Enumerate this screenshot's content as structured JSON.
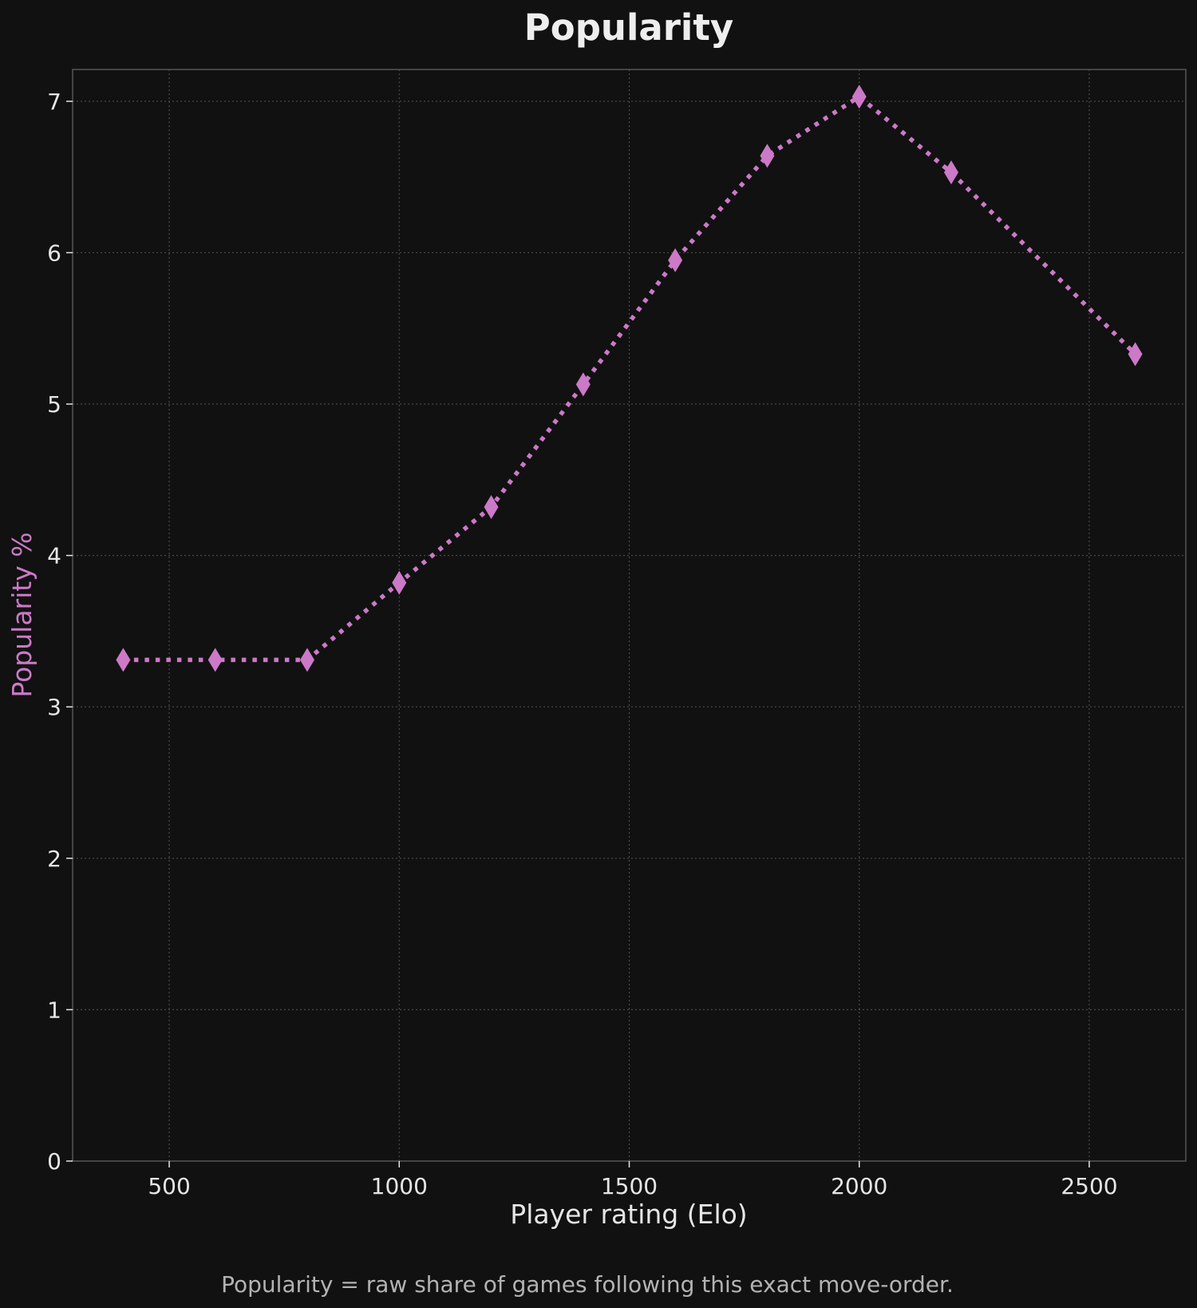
{
  "chart_data": {
    "type": "line",
    "title": "Popularity",
    "xlabel": "Player rating (Elo)",
    "ylabel": "Popularity %",
    "caption": "Popularity = raw share of games following this exact move-order.",
    "x": [
      400,
      600,
      800,
      1000,
      1200,
      1400,
      1600,
      1800,
      2000,
      2200,
      2600
    ],
    "series": [
      {
        "values": [
          3.31,
          3.31,
          3.31,
          3.82,
          4.32,
          5.13,
          5.95,
          6.64,
          7.03,
          6.53,
          5.33
        ],
        "color": "#cc79c8",
        "marker": "diamond",
        "line_style": "dotted"
      }
    ],
    "xlim": [
      290,
      2710
    ],
    "ylim": [
      0,
      7.21
    ],
    "xticks": [
      500,
      1000,
      1500,
      2000,
      2500
    ],
    "yticks": [
      0,
      1,
      2,
      3,
      4,
      5,
      6,
      7
    ],
    "xtick_labels": [
      "500",
      "1000",
      "1500",
      "2000",
      "2500"
    ],
    "ytick_labels": [
      "0",
      "1",
      "2",
      "3",
      "4",
      "5",
      "6",
      "7"
    ],
    "grid": true,
    "colors": {
      "background": "#111111",
      "axes_edge": "#555555",
      "grid": "#4a4a4a",
      "text": "#e6e6e6",
      "ylabel": "#cc79c8"
    }
  }
}
